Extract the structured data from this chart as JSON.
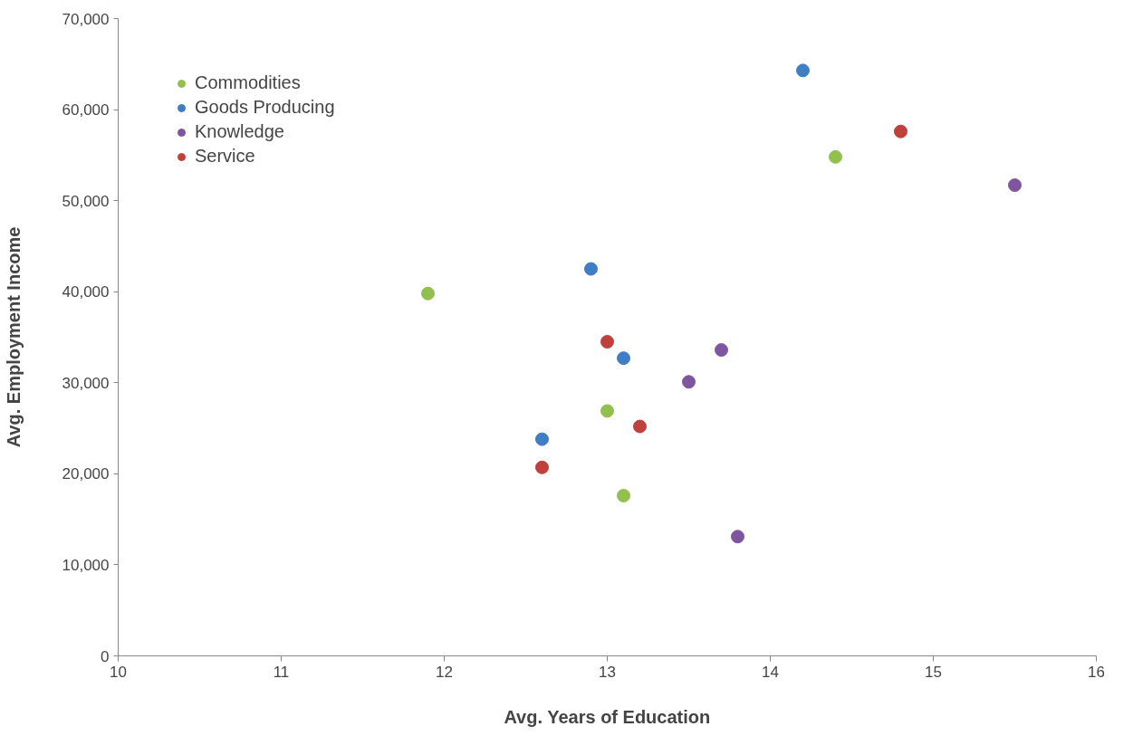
{
  "chart_data": {
    "type": "scatter",
    "xlabel": "Avg. Years of Education",
    "ylabel": "Avg. Employment Income",
    "xlim": [
      10,
      16
    ],
    "xticks": [
      10,
      11,
      12,
      13,
      14,
      15,
      16
    ],
    "ylim": [
      0,
      70000
    ],
    "yticks": [
      {
        "value": 0,
        "label": "0"
      },
      {
        "value": 10000,
        "label": "10,000"
      },
      {
        "value": 20000,
        "label": "20,000"
      },
      {
        "value": 30000,
        "label": "30,000"
      },
      {
        "value": 40000,
        "label": "40,000"
      },
      {
        "value": 50000,
        "label": "50,000"
      },
      {
        "value": 60000,
        "label": "60,000"
      },
      {
        "value": 70000,
        "label": "70,000"
      }
    ],
    "grid": false,
    "legend": "top left",
    "marker": "circle",
    "series": [
      {
        "name": "Commodities",
        "color": "#92c04f",
        "x": [
          11.9,
          13.0,
          13.1,
          14.4
        ],
        "values": [
          39800,
          26900,
          17600,
          54800
        ]
      },
      {
        "name": "Goods Producing",
        "color": "#3f7dc4",
        "x": [
          14.2,
          12.9,
          13.1,
          12.6
        ],
        "values": [
          64300,
          42500,
          32700,
          23800
        ]
      },
      {
        "name": "Knowledge",
        "color": "#7f559f",
        "x": [
          15.5,
          13.7,
          13.5,
          13.8
        ],
        "values": [
          51700,
          33600,
          30100,
          13100
        ]
      },
      {
        "name": "Service",
        "color": "#c0403c",
        "x": [
          14.8,
          13.0,
          13.2,
          12.6
        ],
        "values": [
          57600,
          34500,
          25200,
          20700
        ]
      }
    ]
  }
}
